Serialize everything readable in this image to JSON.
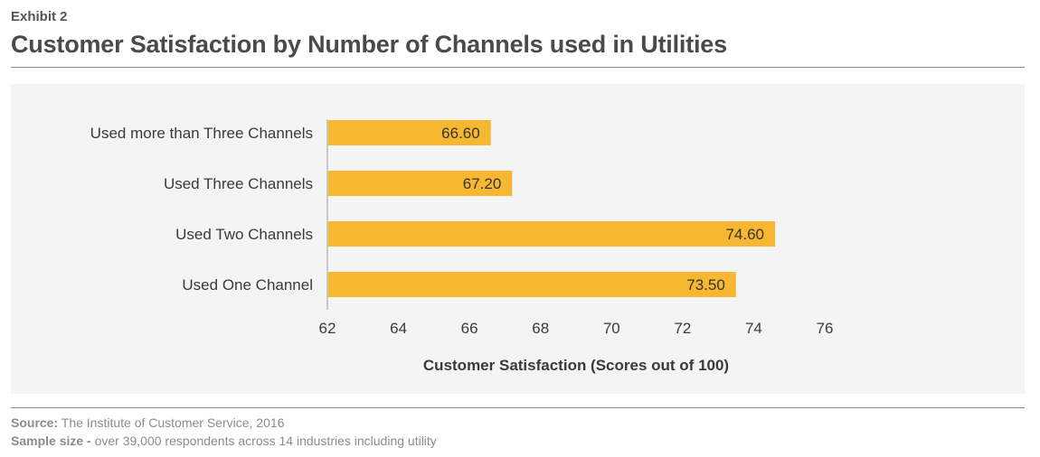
{
  "header": {
    "exhibit": "Exhibit 2",
    "title": "Customer Satisfaction by Number of Channels used in Utilities"
  },
  "chart_data": {
    "type": "bar",
    "orientation": "horizontal",
    "categories": [
      "Used more than Three Channels",
      "Used Three Channels",
      "Used Two Channels",
      "Used One Channel"
    ],
    "values": [
      66.6,
      67.2,
      74.6,
      73.5
    ],
    "value_labels": [
      "66.60",
      "67.20",
      "74.60",
      "73.50"
    ],
    "x_ticks": [
      "62",
      "64",
      "66",
      "68",
      "70",
      "72",
      "74",
      "76"
    ],
    "xlim": [
      62,
      76
    ],
    "xlabel": "Customer Satisfaction (Scores out of 100)",
    "ylabel": "",
    "grid": false,
    "legend": "none",
    "bar_color": "#f7b731",
    "panel_color": "#f4f4f4"
  },
  "footer": {
    "source_label": "Source:",
    "source_text": " The Institute of Customer Service, 2016",
    "sample_label": "Sample size -",
    "sample_text": " over 39,000 respondents across 14 industries including utility"
  }
}
